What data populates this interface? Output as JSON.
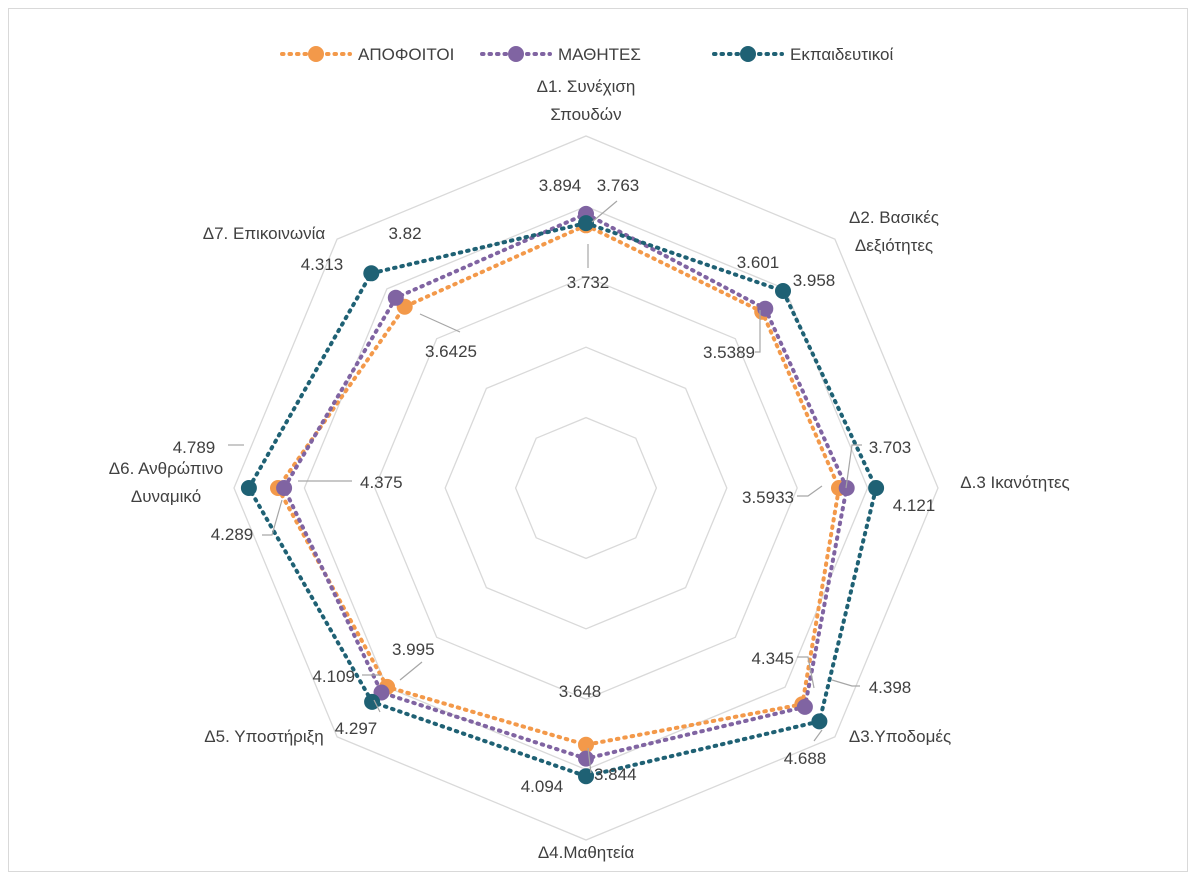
{
  "chart_data": {
    "type": "radar",
    "title": "",
    "categories": [
      [
        "Δ1. Συνέχιση",
        "Σπουδών"
      ],
      [
        "Δ2. Βασικές",
        "Δεξιότητες"
      ],
      [
        "Δ.3 Ικανότητες"
      ],
      [
        "Δ3.Υποδομές"
      ],
      [
        "Δ4.Μαθητεία"
      ],
      [
        "Δ5. Υποστήριξη"
      ],
      [
        "Δ6. Ανθρώπινο",
        "Δυναμικό"
      ],
      [
        "Δ7. Επικοινωνία"
      ]
    ],
    "series": [
      {
        "name": "ΑΠΟΦΟΙΤΟΙ",
        "color": "#f3994a",
        "values": [
          3.732,
          3.5389,
          3.5933,
          4.345,
          3.648,
          3.995,
          4.375,
          3.6425
        ]
      },
      {
        "name": "ΜΑΘΗΤΕΣ",
        "color": "#8064a2",
        "values": [
          3.894,
          3.601,
          3.703,
          4.398,
          3.844,
          4.109,
          4.289,
          3.82
        ]
      },
      {
        "name": "Εκπαιδευτικοί",
        "color": "#1f6174",
        "values": [
          3.763,
          3.958,
          4.121,
          4.688,
          4.094,
          4.297,
          4.789,
          4.313
        ]
      }
    ],
    "value_labels": [
      [
        "3.732",
        "3.5389",
        "3.5933",
        "4.345",
        "3.648",
        "3.995",
        "4.375",
        "3.6425"
      ],
      [
        "3.894",
        "3.601",
        "3.703",
        "4.398",
        "3.844",
        "4.109",
        "4.289",
        "3.82"
      ],
      [
        "3.763",
        "3.958",
        "4.121",
        "4.688",
        "4.094",
        "4.297",
        "4.789",
        "4.313"
      ]
    ],
    "grid": true,
    "grid_rings": 5,
    "axis_labels_shown": false,
    "legend_position": "top",
    "marker": "circle",
    "line_style": "dotted"
  }
}
